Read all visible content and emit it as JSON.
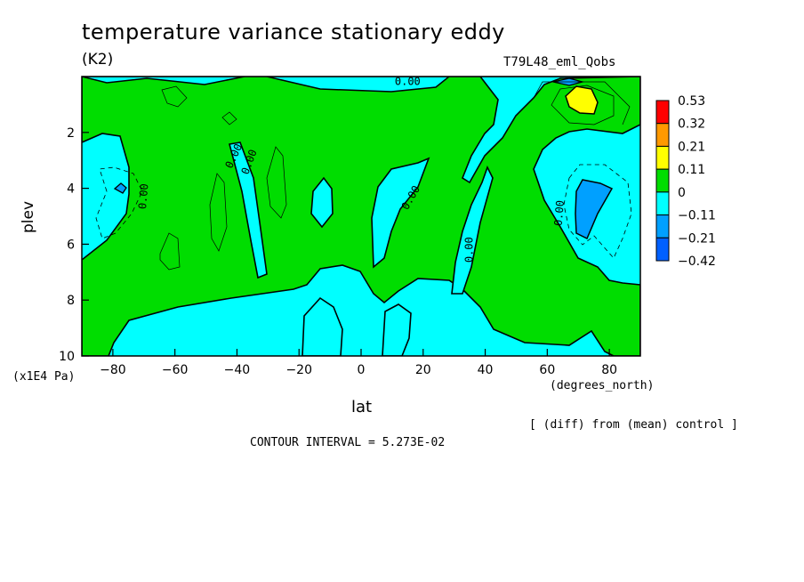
{
  "chart_data": {
    "type": "heatmap",
    "title": "temperature variance stationary eddy",
    "units": "(K2)",
    "run_label": "T79L48_eml_Qobs",
    "xlabel": "lat",
    "xunits": "(degrees_north)",
    "ylabel": "plev",
    "yunits": "(x1E4 Pa)",
    "xlim": [
      -90,
      90
    ],
    "ylim": [
      10,
      0
    ],
    "xticks": [
      -80,
      -60,
      -40,
      -20,
      0,
      20,
      40,
      60,
      80
    ],
    "yticks": [
      2,
      4,
      6,
      8,
      10
    ],
    "contour_labels": [
      "0.00",
      "0.00",
      "0.00",
      "0.00",
      "0.00",
      "0.00",
      "0.00"
    ],
    "colorbar": {
      "levels": [
        "0.53",
        "0.32",
        "0.21",
        "0.11",
        "0",
        "−0.11",
        "−0.21",
        "−0.42"
      ],
      "colors": [
        "#ff0000",
        "#ff9900",
        "#ffff00",
        "#00dd00",
        "#00ffff",
        "#00a0ff",
        "#0060ff"
      ]
    },
    "note": "[ (diff) from (mean) control ]",
    "contour_interval": "CONTOUR INTERVAL = 5.273E-02"
  }
}
